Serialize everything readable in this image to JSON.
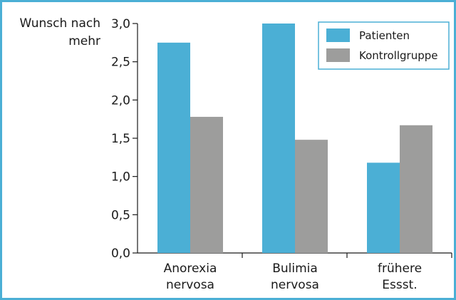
{
  "chart_data": {
    "type": "bar",
    "ylabel_lines": [
      "Wunsch nach",
      "mehr"
    ],
    "categories": [
      [
        "Anorexia",
        "nervosa"
      ],
      [
        "Bulimia",
        "nervosa"
      ],
      [
        "frühere",
        "Essst."
      ]
    ],
    "series": [
      {
        "name": "Patienten",
        "color": "#4bafd5",
        "values": [
          2.75,
          3.0,
          1.18
        ]
      },
      {
        "name": "Kontrollgruppe",
        "color": "#9d9d9c",
        "values": [
          1.78,
          1.48,
          1.67
        ]
      }
    ],
    "ylim": [
      0,
      3.0
    ],
    "yticks": [
      "0,0",
      "0,5",
      "1,0",
      "1,5",
      "2,0",
      "2,5",
      "3,0"
    ],
    "grid": false,
    "legend_position": "top-right",
    "frame_color": "#4bafd5"
  }
}
